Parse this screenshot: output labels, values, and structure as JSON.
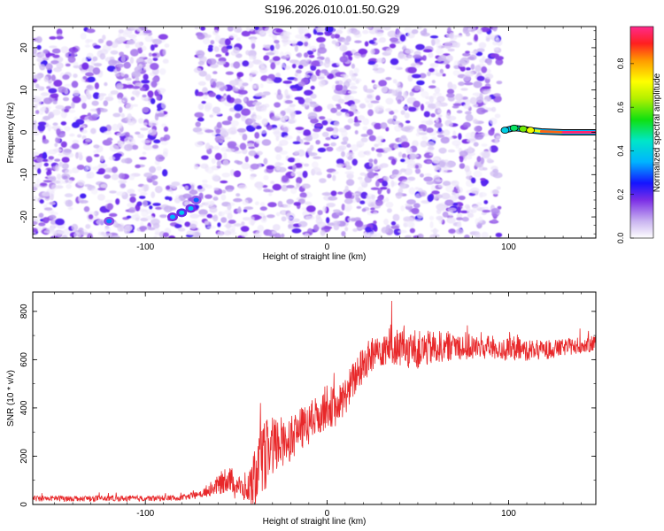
{
  "figure_title": "S196.2026.010.01.50.G29",
  "chart_data": [
    {
      "type": "heatmap",
      "title": "S196.2026.010.01.50.G29",
      "xlabel": "Height of straight line (km)",
      "ylabel": "Frequency (Hz)",
      "xlim": [
        -162,
        148
      ],
      "ylim": [
        -25,
        25
      ],
      "xticks": [
        -100,
        0,
        100
      ],
      "yticks": [
        -20,
        -10,
        0,
        10,
        20
      ],
      "colorbar": {
        "label": "Normalized spectral amplitude",
        "range": [
          0,
          0.97
        ],
        "ticks": [
          0,
          0.2,
          0.4,
          0.6,
          0.8
        ]
      },
      "features": [
        {
          "name": "noise-field",
          "x_range": [
            -162,
            95
          ],
          "y_range": [
            -25,
            25
          ],
          "amplitude_range": [
            0.02,
            0.22
          ]
        },
        {
          "name": "data-gap",
          "x_range": [
            -88,
            -72
          ],
          "y_range": [
            -12,
            25
          ]
        },
        {
          "name": "weak-trace-lower-left",
          "x": [
            -120,
            -85,
            -80,
            -75,
            -72
          ],
          "y": [
            -21,
            -20,
            -19,
            -18,
            -16
          ],
          "amplitude": [
            0.22,
            0.25,
            0.28,
            0.26,
            0.2
          ]
        },
        {
          "name": "carrier-line",
          "x": [
            98,
            103,
            108,
            112,
            118,
            130,
            148
          ],
          "y": [
            0.5,
            1.0,
            0.8,
            0.5,
            0.2,
            0.0,
            0.0
          ],
          "amplitude": [
            0.4,
            0.5,
            0.6,
            0.7,
            0.85,
            0.95,
            0.95
          ]
        }
      ]
    },
    {
      "type": "line",
      "xlabel": "Height of straight line (km)",
      "ylabel": "SNR (10 * v/v)",
      "xlim": [
        -162,
        148
      ],
      "ylim": [
        0,
        880
      ],
      "xticks": [
        -100,
        0,
        100
      ],
      "yticks": [
        0,
        200,
        400,
        600,
        800
      ],
      "series": [
        {
          "name": "SNR",
          "color": "#e8282a",
          "x": [
            -162,
            -140,
            -120,
            -100,
            -80,
            -70,
            -60,
            -55,
            -50,
            -45,
            -40,
            -35,
            -30,
            -25,
            -20,
            -15,
            -10,
            -5,
            0,
            5,
            10,
            15,
            20,
            25,
            30,
            35,
            40,
            50,
            60,
            70,
            80,
            90,
            100,
            110,
            120,
            130,
            140,
            148
          ],
          "values": [
            25,
            25,
            25,
            25,
            28,
            40,
            80,
            110,
            90,
            50,
            100,
            200,
            230,
            260,
            280,
            310,
            330,
            370,
            410,
            400,
            450,
            520,
            580,
            620,
            650,
            660,
            650,
            640,
            650,
            660,
            650,
            650,
            640,
            640,
            640,
            650,
            660,
            665
          ],
          "noise_amplitude": [
            12,
            12,
            12,
            12,
            12,
            15,
            40,
            60,
            50,
            40,
            120,
            150,
            130,
            110,
            100,
            90,
            90,
            90,
            90,
            80,
            80,
            80,
            80,
            80,
            80,
            80,
            80,
            80,
            70,
            60,
            55,
            50,
            50,
            45,
            40,
            35,
            35,
            35
          ]
        }
      ]
    }
  ]
}
